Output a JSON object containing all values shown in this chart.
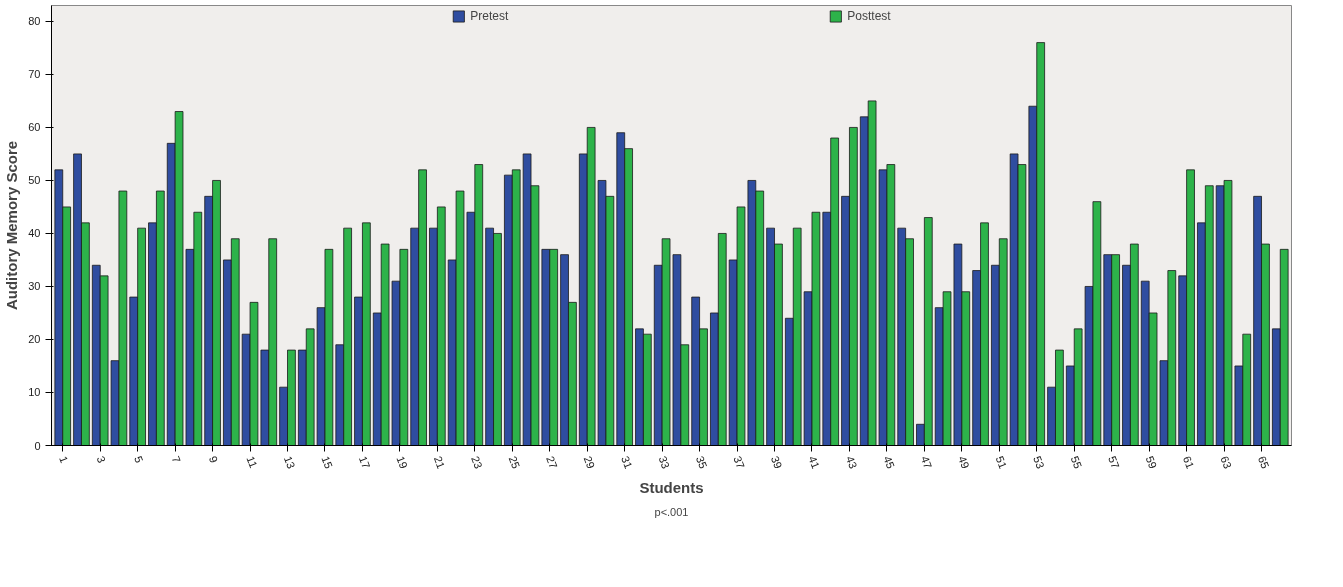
{
  "chart_data": {
    "type": "bar",
    "xlabel": "Students",
    "ylabel": "Auditory Memory Score",
    "categories": [
      "1",
      null,
      "3",
      null,
      "5",
      null,
      "7",
      null,
      "9",
      null,
      "11",
      null,
      "13",
      null,
      "15",
      null,
      "17",
      null,
      "19",
      null,
      "21",
      null,
      "23",
      null,
      "25",
      null,
      "27",
      null,
      "29",
      null,
      "31",
      null,
      "33",
      null,
      "35",
      null,
      "37",
      null,
      "39",
      null,
      "41",
      null,
      "43",
      null,
      "45",
      null,
      "47",
      null,
      "49",
      null,
      "51",
      null,
      "53",
      null,
      "55",
      null,
      "57",
      null,
      "59",
      null,
      "61",
      null,
      "63",
      null,
      "65",
      null
    ],
    "series": [
      {
        "name": "Pretest",
        "color": "#2f4da0",
        "values": [
          52,
          55,
          34,
          16,
          28,
          42,
          57,
          37,
          47,
          35,
          21,
          18,
          11,
          18,
          26,
          19,
          28,
          25,
          31,
          41,
          41,
          35,
          44,
          41,
          51,
          55,
          37,
          36,
          55,
          50,
          59,
          22,
          34,
          36,
          28,
          25,
          35,
          50,
          41,
          24,
          29,
          44,
          47,
          62,
          52,
          41,
          4,
          26,
          38,
          33,
          34,
          55,
          64,
          11,
          15,
          30,
          36,
          34,
          31,
          16,
          32,
          42,
          49,
          15,
          47,
          22
        ]
      },
      {
        "name": "Posttest",
        "color": "#2db34a",
        "values": [
          45,
          42,
          32,
          48,
          41,
          48,
          63,
          44,
          50,
          39,
          27,
          39,
          18,
          22,
          37,
          41,
          42,
          38,
          37,
          52,
          45,
          48,
          53,
          40,
          52,
          49,
          37,
          27,
          60,
          47,
          56,
          21,
          39,
          19,
          22,
          40,
          45,
          48,
          38,
          41,
          44,
          58,
          60,
          65,
          53,
          39,
          43,
          29,
          29,
          42,
          39,
          53,
          76,
          18,
          22,
          46,
          36,
          38,
          25,
          33,
          52,
          49,
          50,
          21,
          38,
          37
        ]
      }
    ],
    "ylim": [
      0,
      83
    ],
    "yticks": [
      0,
      10,
      20,
      30,
      40,
      50,
      60,
      70,
      80
    ],
    "grid": false,
    "legend": "top",
    "annotations": [
      "p<.001"
    ]
  }
}
